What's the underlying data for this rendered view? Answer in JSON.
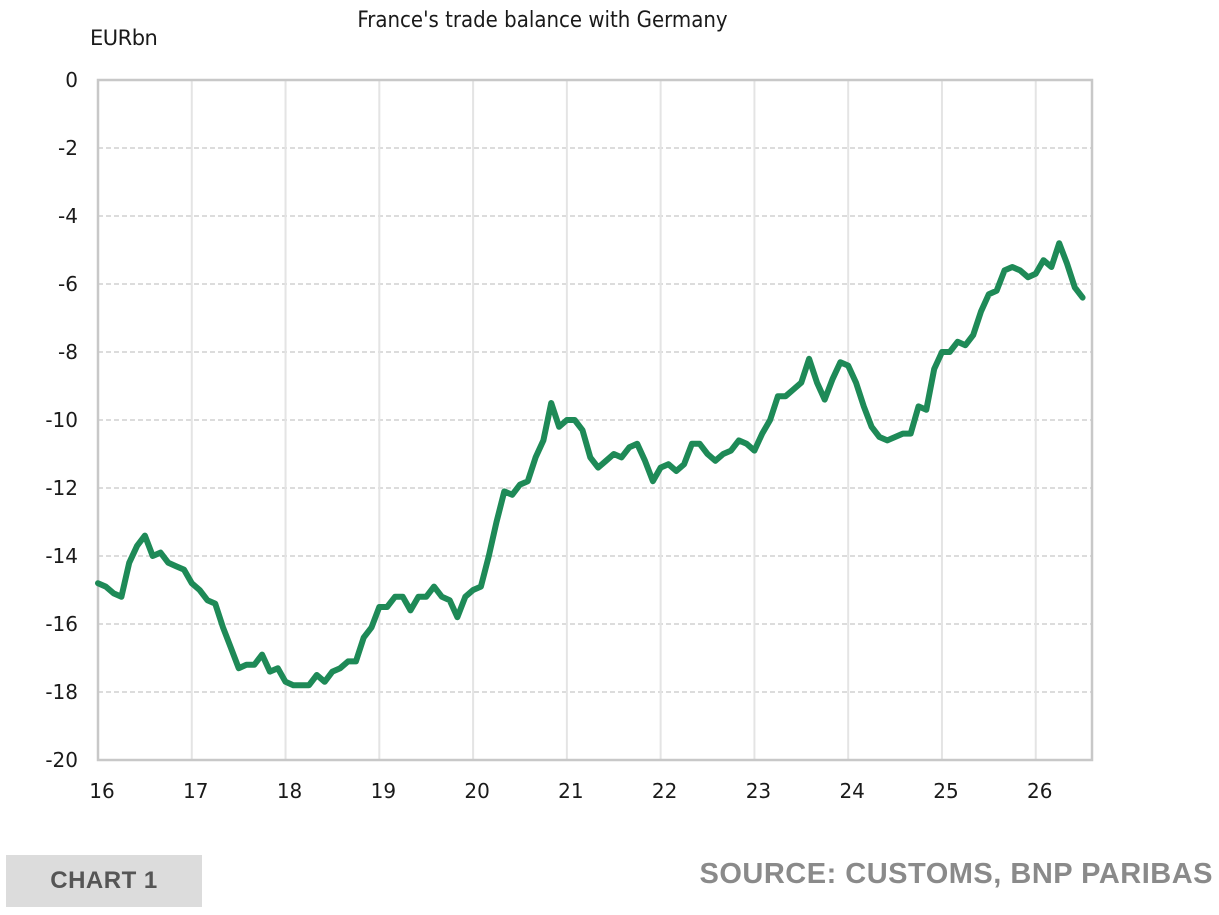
{
  "chart_data": {
    "type": "line",
    "title": "France's trade balance with Germany",
    "ylabel": "EURbn",
    "xlabel": "",
    "x_tick_labels": [
      "16",
      "17",
      "18",
      "19",
      "20",
      "21",
      "22",
      "23",
      "24",
      "25",
      "26"
    ],
    "y_tick_labels": [
      "0",
      "-2",
      "-4",
      "-6",
      "-8",
      "-10",
      "-12",
      "-14",
      "-16",
      "-18",
      "-20"
    ],
    "y_ticks": [
      0,
      -2,
      -4,
      -6,
      -8,
      -10,
      -12,
      -14,
      -16,
      -18,
      -20
    ],
    "ylim": [
      -20,
      0
    ],
    "xlim": [
      2016.0,
      2026.6
    ],
    "grid": true,
    "line_color": "#1e8a57",
    "series": [
      {
        "x": [
          2016.0,
          2016.083,
          2016.167,
          2016.25,
          2016.333,
          2016.417,
          2016.5,
          2016.583,
          2016.667,
          2016.75,
          2016.833,
          2016.917,
          2017.0,
          2017.083,
          2017.167,
          2017.25,
          2017.333,
          2017.417,
          2017.5,
          2017.583,
          2017.667,
          2017.75,
          2017.833,
          2017.917,
          2018.0,
          2018.083,
          2018.167,
          2018.25,
          2018.333,
          2018.417,
          2018.5,
          2018.583,
          2018.667,
          2018.75,
          2018.833,
          2018.917,
          2019.0,
          2019.083,
          2019.167,
          2019.25,
          2019.333,
          2019.417,
          2019.5,
          2019.583,
          2019.667,
          2019.75,
          2019.833,
          2019.917,
          2020.0,
          2020.083,
          2020.167,
          2020.25,
          2020.333,
          2020.417,
          2020.5,
          2020.583,
          2020.667,
          2020.75,
          2020.833,
          2020.917,
          2021.0,
          2021.083,
          2021.167,
          2021.25,
          2021.333,
          2021.417,
          2021.5,
          2021.583,
          2021.667,
          2021.75,
          2021.833,
          2021.917,
          2022.0,
          2022.083,
          2022.167,
          2022.25,
          2022.333,
          2022.417,
          2022.5,
          2022.583,
          2022.667,
          2022.75,
          2022.833,
          2022.917,
          2023.0,
          2023.083,
          2023.167,
          2023.25,
          2023.333,
          2023.417,
          2023.5,
          2023.583,
          2023.667,
          2023.75,
          2023.833,
          2023.917,
          2024.0,
          2024.083,
          2024.167,
          2024.25,
          2024.333,
          2024.417,
          2024.5,
          2024.583,
          2024.667,
          2024.75,
          2024.833,
          2024.917,
          2025.0,
          2025.083,
          2025.167,
          2025.25,
          2025.333,
          2025.417,
          2025.5,
          2025.583,
          2025.667,
          2025.75,
          2025.833,
          2025.917,
          2026.0,
          2026.083,
          2026.167,
          2026.25,
          2026.333,
          2026.417,
          2026.5
        ],
        "y": [
          -14.8,
          -14.9,
          -15.1,
          -15.2,
          -14.2,
          -13.7,
          -13.4,
          -14.0,
          -13.9,
          -14.2,
          -14.3,
          -14.4,
          -14.8,
          -15.0,
          -15.3,
          -15.4,
          -16.1,
          -16.7,
          -17.3,
          -17.2,
          -17.2,
          -16.9,
          -17.4,
          -17.3,
          -17.7,
          -17.8,
          -17.8,
          -17.8,
          -17.5,
          -17.7,
          -17.4,
          -17.3,
          -17.1,
          -17.1,
          -16.4,
          -16.1,
          -15.5,
          -15.5,
          -15.2,
          -15.2,
          -15.6,
          -15.2,
          -15.2,
          -14.9,
          -15.2,
          -15.3,
          -15.8,
          -15.2,
          -15.0,
          -14.9,
          -14.0,
          -13.0,
          -12.1,
          -12.2,
          -11.9,
          -11.8,
          -11.1,
          -10.6,
          -9.5,
          -10.2,
          -10.0,
          -10.0,
          -10.3,
          -11.1,
          -11.4,
          -11.2,
          -11.0,
          -11.1,
          -10.8,
          -10.7,
          -11.2,
          -11.8,
          -11.4,
          -11.3,
          -11.5,
          -11.3,
          -10.7,
          -10.7,
          -11.0,
          -11.2,
          -11.0,
          -10.9,
          -10.6,
          -10.7,
          -10.9,
          -10.4,
          -10.0,
          -9.3,
          -9.3,
          -9.1,
          -8.9,
          -8.2,
          -8.9,
          -9.4,
          -8.8,
          -8.3,
          -8.4,
          -8.9,
          -9.6,
          -10.2,
          -10.5,
          -10.6,
          -10.5,
          -10.4,
          -10.4,
          -9.6,
          -9.7,
          -8.5,
          -8.0,
          -8.0,
          -7.7,
          -7.8,
          -7.5,
          -6.8,
          -6.3,
          -6.2,
          -5.6,
          -5.5,
          -5.6,
          -5.8,
          -5.7,
          -5.3,
          -5.5,
          -4.8,
          -5.4,
          -6.1,
          -6.4
        ]
      }
    ]
  },
  "footer": {
    "chart_tag": "CHART 1",
    "source": "SOURCE: CUSTOMS, BNP PARIBAS"
  }
}
